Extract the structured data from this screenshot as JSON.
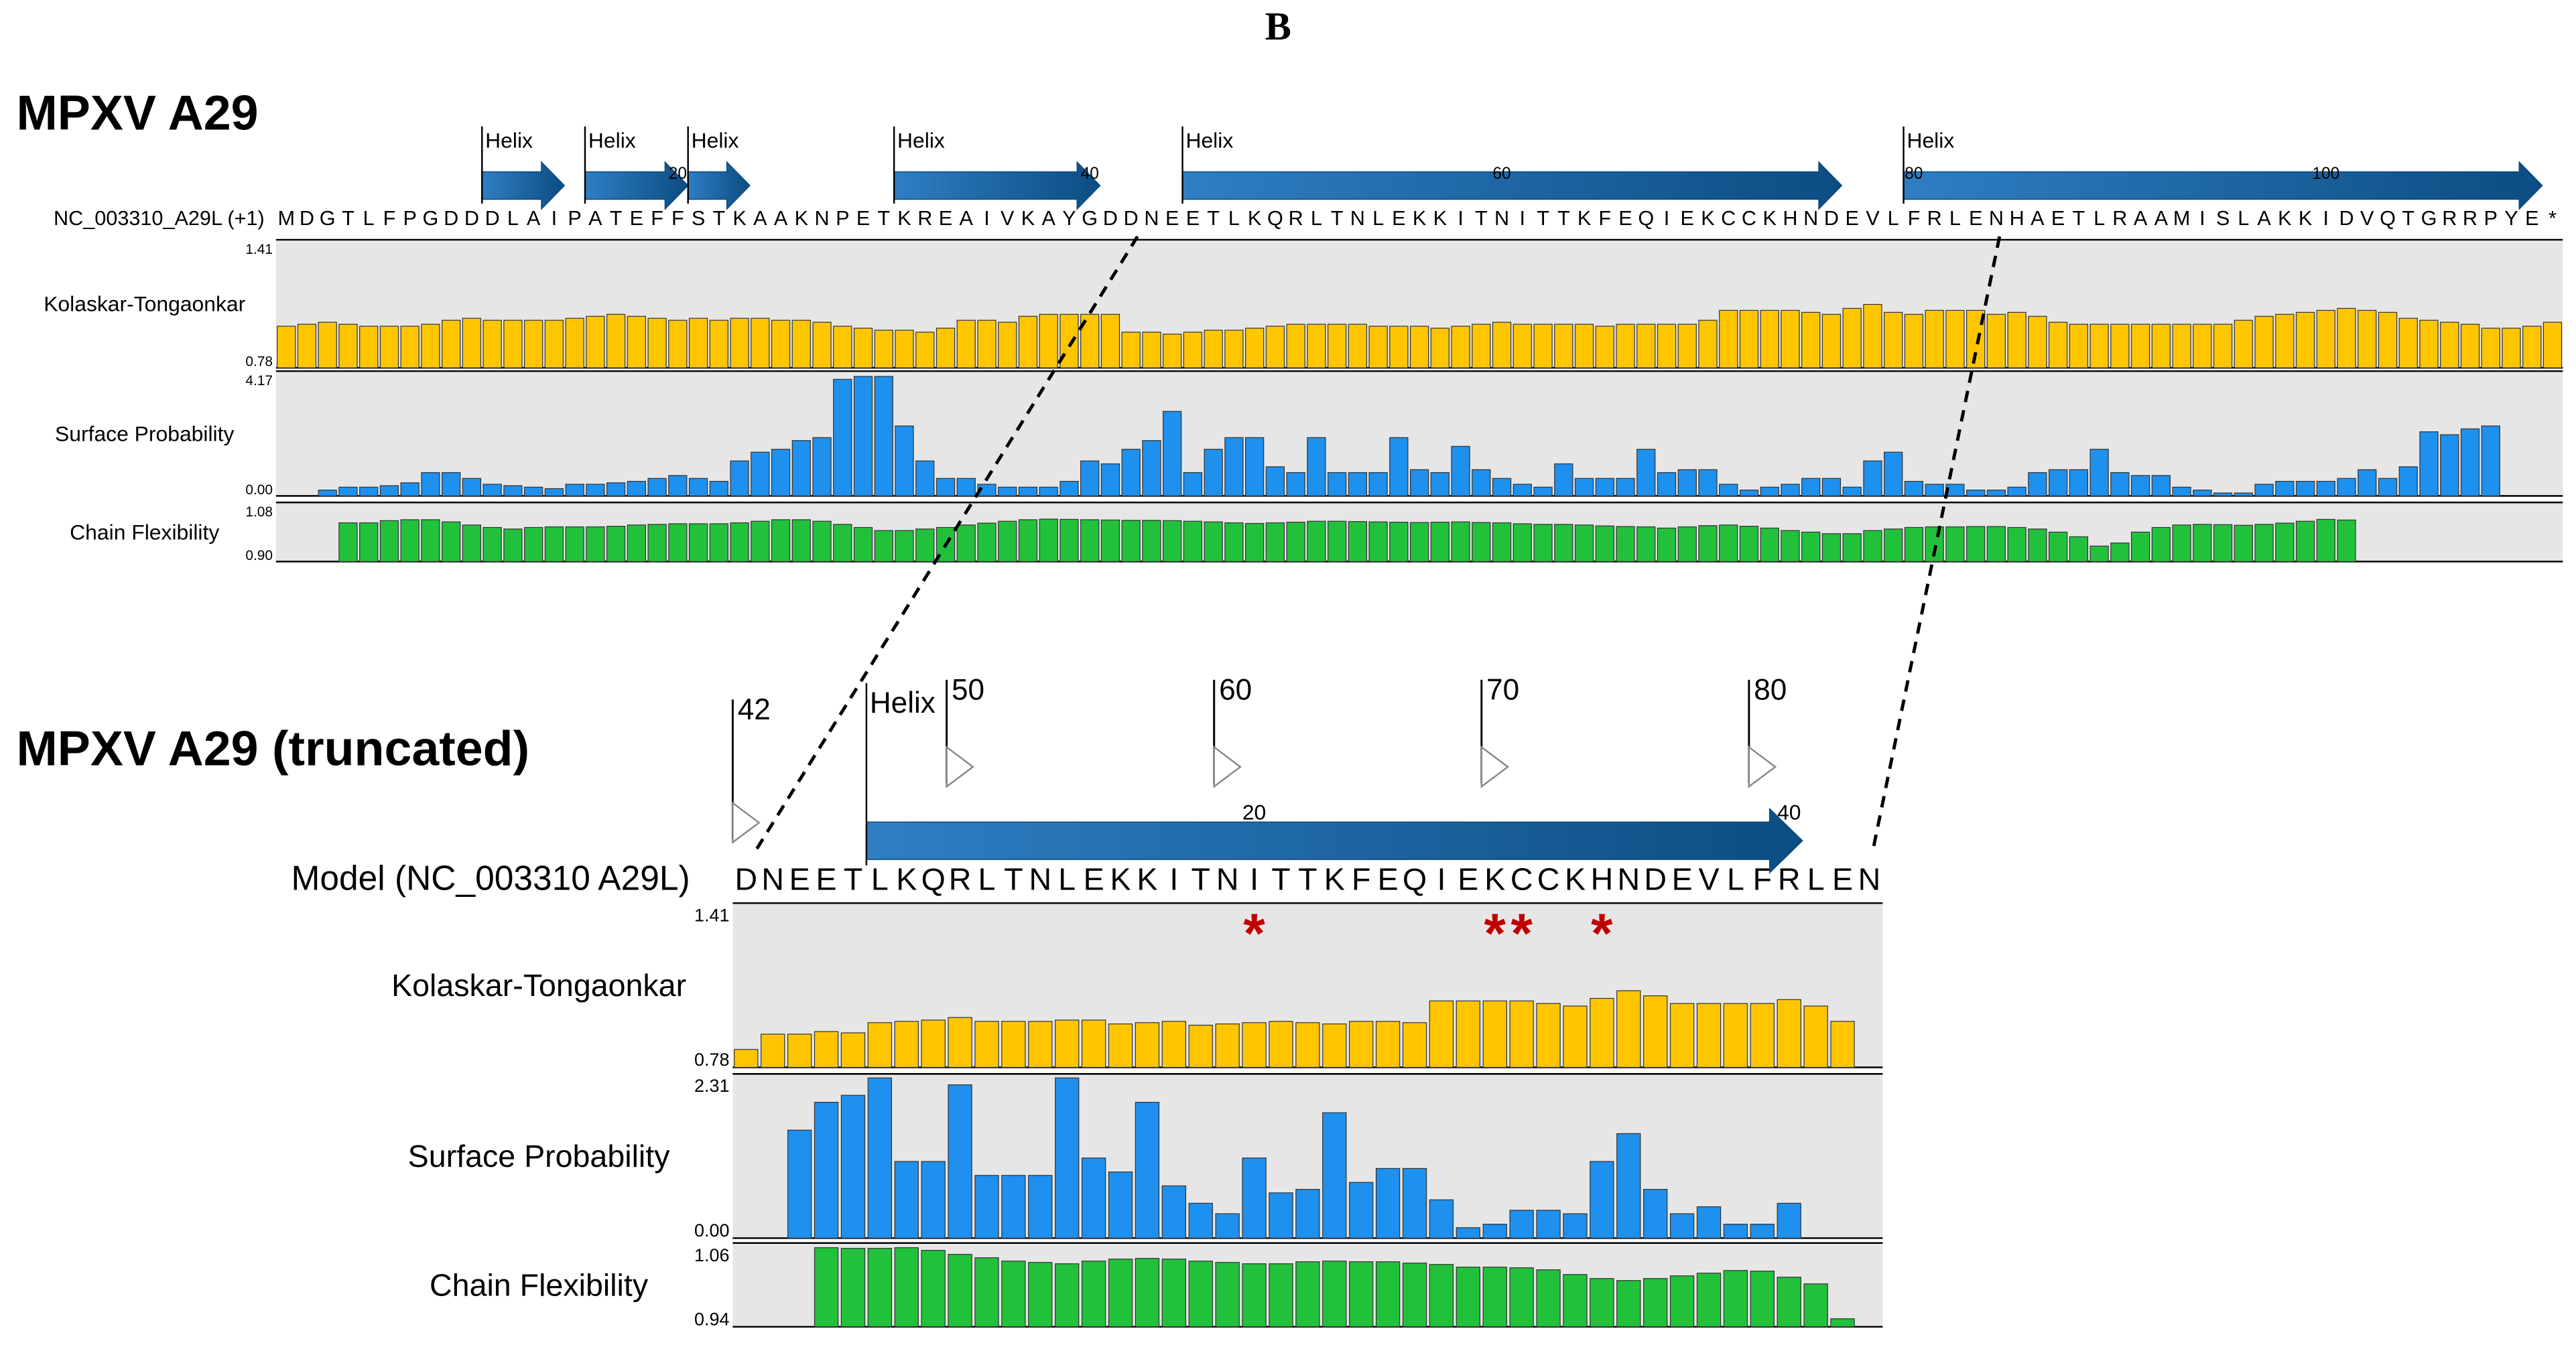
{
  "panel_letter": "B",
  "full": {
    "title": "MPXV A29",
    "track_label": "NC_003310_A29L (+1)",
    "sequence": "MDGTLFPGDDDLAIPATEFFSTKAAKNPETKREAIVKAYGDDNEETLKQRLTNLEKKITNITTKFEQIEKCCKHNDEVLFRLENHAETLRAAMISLAKKIDVQTGRRPYE*",
    "helices": [
      {
        "label": "Helix",
        "start": 11,
        "end": 14
      },
      {
        "label": "Helix",
        "start": 16,
        "end": 20
      },
      {
        "label": "Helix",
        "start": 21,
        "end": 23
      },
      {
        "label": "Helix",
        "start": 31,
        "end": 40
      },
      {
        "label": "Helix",
        "start": 45,
        "end": 76
      },
      {
        "label": "Helix",
        "start": 80,
        "end": 110
      }
    ],
    "ruler": [
      {
        "pos": 20,
        "label": "20"
      },
      {
        "pos": 40,
        "label": "40"
      },
      {
        "pos": 60,
        "label": "60"
      },
      {
        "pos": 80,
        "label": "80"
      },
      {
        "pos": 100,
        "label": "100"
      }
    ],
    "tracks": [
      {
        "name": "Kolaskar-Tongaonkar",
        "color": "#ffc600",
        "max_label": "1.41",
        "min_label": "0.78",
        "ymin": 0.78,
        "ymax": 1.41,
        "start": 1,
        "values": [
          0.99,
          1.0,
          1.01,
          1.0,
          0.99,
          0.99,
          0.99,
          1.0,
          1.02,
          1.03,
          1.02,
          1.02,
          1.02,
          1.02,
          1.03,
          1.04,
          1.05,
          1.04,
          1.03,
          1.02,
          1.03,
          1.02,
          1.03,
          1.03,
          1.02,
          1.02,
          1.01,
          0.99,
          0.98,
          0.97,
          0.97,
          0.96,
          0.98,
          1.02,
          1.02,
          1.01,
          1.04,
          1.05,
          1.05,
          1.05,
          1.05,
          0.96,
          0.96,
          0.95,
          0.96,
          0.97,
          0.97,
          0.98,
          0.99,
          1.0,
          1.0,
          1.0,
          1.0,
          0.99,
          0.99,
          0.99,
          0.98,
          0.99,
          1.0,
          1.01,
          1.0,
          1.0,
          1.0,
          1.0,
          0.99,
          1.0,
          1.0,
          1.0,
          1.0,
          1.02,
          1.07,
          1.07,
          1.07,
          1.07,
          1.06,
          1.05,
          1.08,
          1.1,
          1.06,
          1.05,
          1.07,
          1.07,
          1.07,
          1.05,
          1.06,
          1.04,
          1.01,
          1.0,
          1.0,
          1.0,
          1.0,
          1.0,
          1.0,
          1.0,
          1.0,
          1.02,
          1.04,
          1.05,
          1.06,
          1.07,
          1.08,
          1.07,
          1.06,
          1.03,
          1.02,
          1.01,
          1.0,
          0.98,
          0.98,
          0.99,
          1.01
        ]
      },
      {
        "name": "Surface Probability",
        "color": "#1e90ee",
        "max_label": "4.17",
        "min_label": "0.00",
        "ymin": 0.0,
        "ymax": 4.17,
        "start": 1,
        "values": [
          0.0,
          0.0,
          0.2,
          0.3,
          0.3,
          0.35,
          0.45,
          0.8,
          0.8,
          0.6,
          0.4,
          0.35,
          0.3,
          0.25,
          0.4,
          0.4,
          0.45,
          0.5,
          0.6,
          0.7,
          0.6,
          0.5,
          1.2,
          1.5,
          1.6,
          1.9,
          2.0,
          4.0,
          4.1,
          4.1,
          2.4,
          1.2,
          0.6,
          0.6,
          0.4,
          0.3,
          0.3,
          0.3,
          0.5,
          1.2,
          1.1,
          1.6,
          1.9,
          2.9,
          0.8,
          1.6,
          2.0,
          2.0,
          1.0,
          0.8,
          2.0,
          0.8,
          0.8,
          0.8,
          2.0,
          0.9,
          0.8,
          1.7,
          0.9,
          0.6,
          0.4,
          0.3,
          1.1,
          0.6,
          0.6,
          0.6,
          1.6,
          0.8,
          0.9,
          0.9,
          0.4,
          0.2,
          0.3,
          0.4,
          0.6,
          0.6,
          0.3,
          1.2,
          1.5,
          0.5,
          0.4,
          0.4,
          0.2,
          0.2,
          0.3,
          0.8,
          0.9,
          0.9,
          1.6,
          0.8,
          0.7,
          0.7,
          0.3,
          0.2,
          0.1,
          0.1,
          0.4,
          0.5,
          0.5,
          0.5,
          0.6,
          0.9,
          0.6,
          1.0,
          2.2,
          2.1,
          2.3,
          2.4
        ]
      },
      {
        "name": "Chain Flexibility",
        "color": "#22c13c",
        "max_label": "1.08",
        "min_label": "0.90",
        "ymin": 0.9,
        "ymax": 1.08,
        "start": 4,
        "values": [
          1.025,
          1.025,
          1.032,
          1.035,
          1.035,
          1.028,
          1.018,
          1.01,
          1.005,
          1.01,
          1.012,
          1.012,
          1.012,
          1.014,
          1.018,
          1.02,
          1.022,
          1.022,
          1.022,
          1.025,
          1.03,
          1.035,
          1.035,
          1.03,
          1.02,
          1.01,
          1.0,
          1.0,
          1.005,
          1.01,
          1.018,
          1.024,
          1.03,
          1.035,
          1.037,
          1.036,
          1.035,
          1.034,
          1.033,
          1.033,
          1.032,
          1.03,
          1.028,
          1.025,
          1.023,
          1.025,
          1.027,
          1.03,
          1.03,
          1.029,
          1.028,
          1.027,
          1.026,
          1.027,
          1.028,
          1.026,
          1.025,
          1.022,
          1.02,
          1.02,
          1.018,
          1.015,
          1.013,
          1.012,
          1.008,
          1.012,
          1.016,
          1.018,
          1.014,
          1.008,
          1.0,
          0.995,
          0.99,
          0.99,
          1.0,
          1.005,
          1.01,
          1.012,
          1.012,
          1.013,
          1.013,
          1.01,
          1.005,
          0.995,
          0.98,
          0.95,
          0.96,
          0.995,
          1.01,
          1.018,
          1.02,
          1.019,
          1.017,
          1.02,
          1.024,
          1.03,
          1.036,
          1.034
        ]
      }
    ]
  },
  "truncated": {
    "title": "MPXV A29 (truncated)",
    "track_label": "Model (NC_003310 A29L)",
    "sequence": "DNEETLKQRLTNLEKKITNITTKFEQIEKCCKHNDEVLFRLEN",
    "first_residue": 42,
    "start_marker": "42",
    "helix": {
      "label": "Helix",
      "start": 6,
      "end": 40
    },
    "ruler_major": [
      {
        "pos": 9,
        "label": "50"
      },
      {
        "pos": 19,
        "label": "60"
      },
      {
        "pos": 29,
        "label": "70"
      },
      {
        "pos": 39,
        "label": "80"
      }
    ],
    "ruler_minor": [
      {
        "pos": 20,
        "label": "20"
      },
      {
        "pos": 40,
        "label": "40"
      }
    ],
    "stars": [
      20,
      29,
      30,
      33
    ],
    "star_glyph": "*",
    "tracks": [
      {
        "name": "Kolaskar-Tongaonkar",
        "color": "#ffc600",
        "max_label": "1.41",
        "min_label": "0.78",
        "ymin": 0.78,
        "ymax": 1.41,
        "start": 1,
        "values": [
          0.85,
          0.91,
          0.91,
          0.92,
          0.915,
          0.955,
          0.96,
          0.965,
          0.975,
          0.96,
          0.96,
          0.96,
          0.965,
          0.965,
          0.95,
          0.955,
          0.96,
          0.945,
          0.95,
          0.955,
          0.96,
          0.955,
          0.95,
          0.96,
          0.96,
          0.955,
          1.04,
          1.04,
          1.04,
          1.04,
          1.03,
          1.02,
          1.05,
          1.08,
          1.06,
          1.03,
          1.03,
          1.03,
          1.03,
          1.045,
          1.02,
          0.96
        ]
      },
      {
        "name": "Surface Probability",
        "color": "#1e90ee",
        "max_label": "2.31",
        "min_label": "0.00",
        "ymin": 0.0,
        "ymax": 2.31,
        "start": 1,
        "values": [
          0.0,
          0.0,
          1.55,
          1.95,
          2.05,
          2.3,
          1.1,
          1.1,
          2.2,
          0.9,
          0.9,
          0.9,
          2.3,
          1.15,
          0.95,
          1.95,
          0.75,
          0.5,
          0.35,
          1.15,
          0.65,
          0.7,
          1.8,
          0.8,
          1.0,
          1.0,
          0.55,
          0.15,
          0.2,
          0.4,
          0.4,
          0.35,
          1.1,
          1.5,
          0.7,
          0.35,
          0.45,
          0.2,
          0.2,
          0.5
        ]
      },
      {
        "name": "Chain Flexibility",
        "color": "#22c13c",
        "max_label": "1.06",
        "min_label": "0.94",
        "ymin": 0.94,
        "ymax": 1.06,
        "start": 4,
        "values": [
          1.058,
          1.057,
          1.057,
          1.058,
          1.054,
          1.048,
          1.043,
          1.038,
          1.036,
          1.034,
          1.038,
          1.041,
          1.042,
          1.041,
          1.038,
          1.036,
          1.034,
          1.034,
          1.037,
          1.038,
          1.037,
          1.037,
          1.035,
          1.033,
          1.029,
          1.029,
          1.028,
          1.025,
          1.018,
          1.012,
          1.009,
          1.012,
          1.016,
          1.02,
          1.024,
          1.023,
          1.014,
          1.004,
          0.952
        ]
      }
    ]
  }
}
